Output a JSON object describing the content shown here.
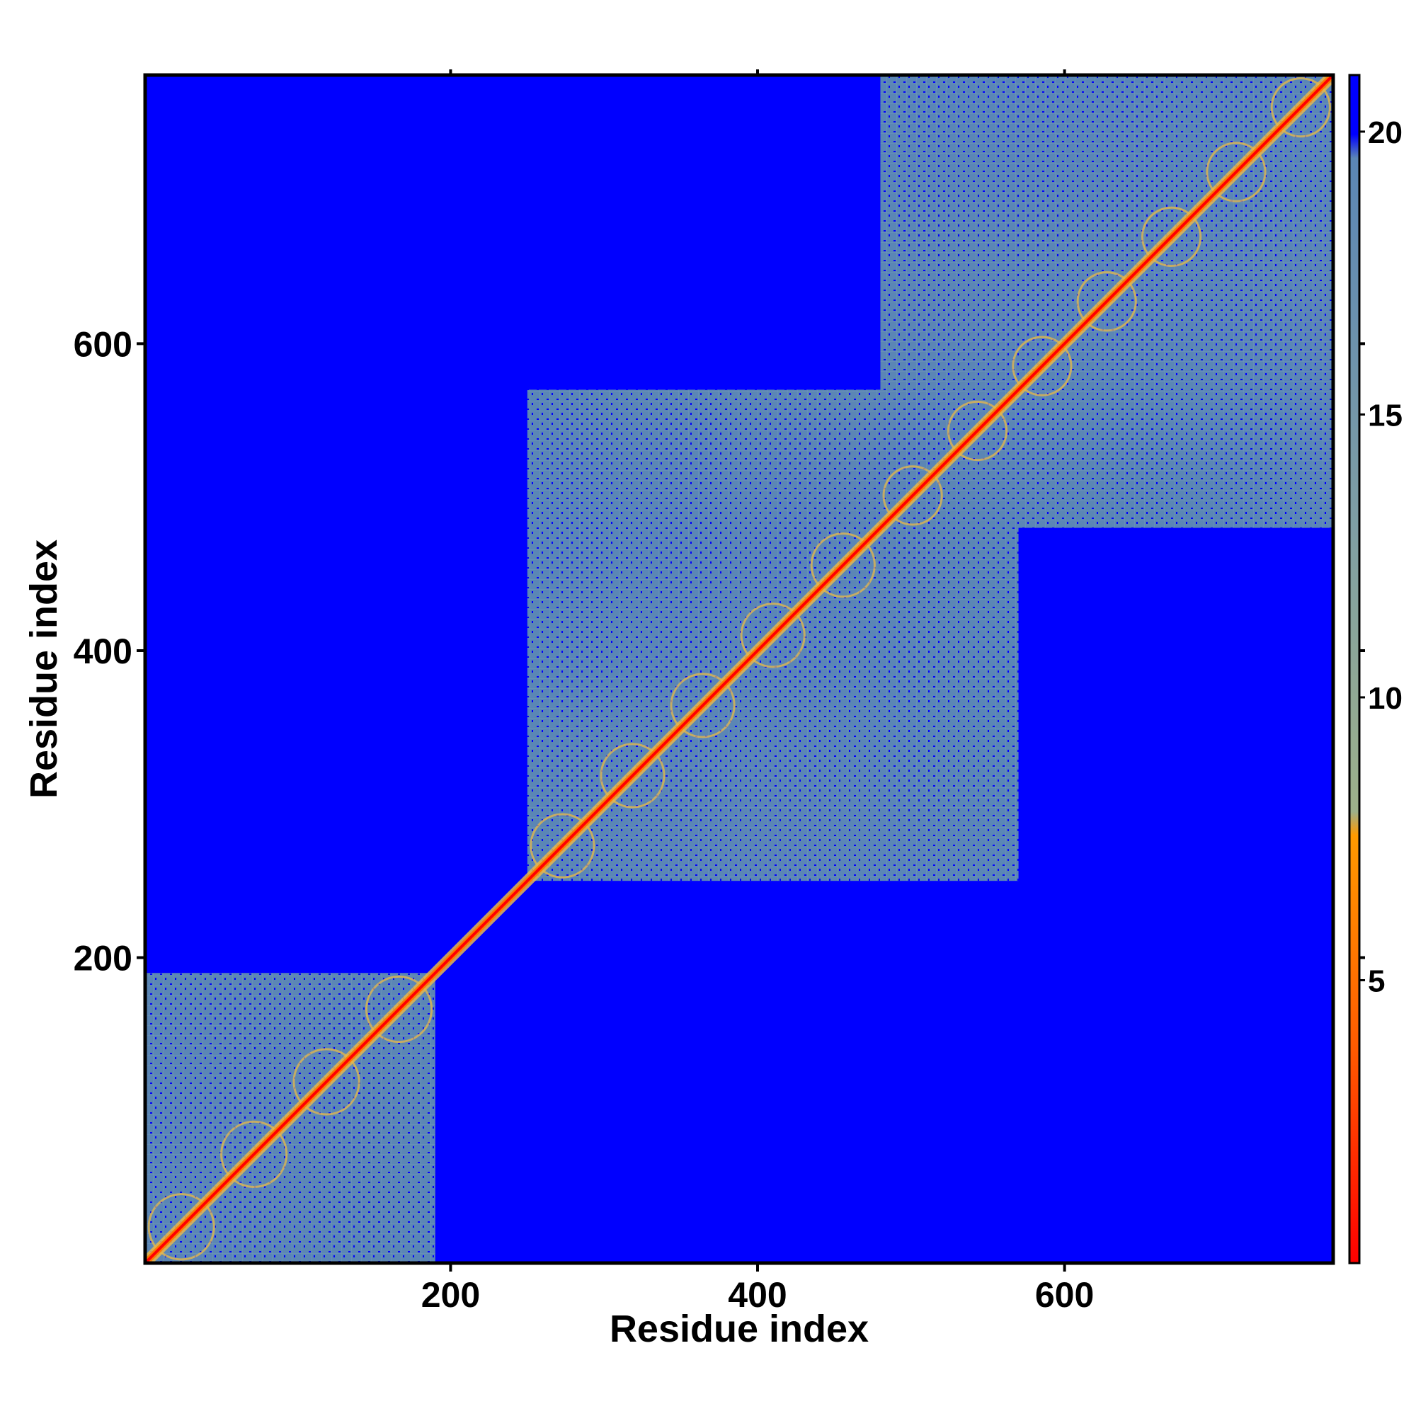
{
  "chart_data": {
    "type": "heatmap",
    "title": "",
    "xlabel": "Residue index",
    "ylabel": "Residue index",
    "xlim": [
      1,
      775
    ],
    "ylim": [
      1,
      775
    ],
    "x_ticks": [
      200,
      400,
      600
    ],
    "y_ticks": [
      200,
      400,
      600
    ],
    "colorbar": {
      "range": [
        0,
        21
      ],
      "ticks": [
        5,
        10,
        15,
        20
      ],
      "palette": [
        "#ff0000",
        "#ff8c00",
        "#e8b84a",
        "#8fa88a",
        "#5b86b5",
        "#0000ff"
      ]
    },
    "domains": [
      {
        "start": 1,
        "end": 190
      },
      {
        "start": 250,
        "end": 570
      },
      {
        "start": 480,
        "end": 775
      }
    ]
  }
}
